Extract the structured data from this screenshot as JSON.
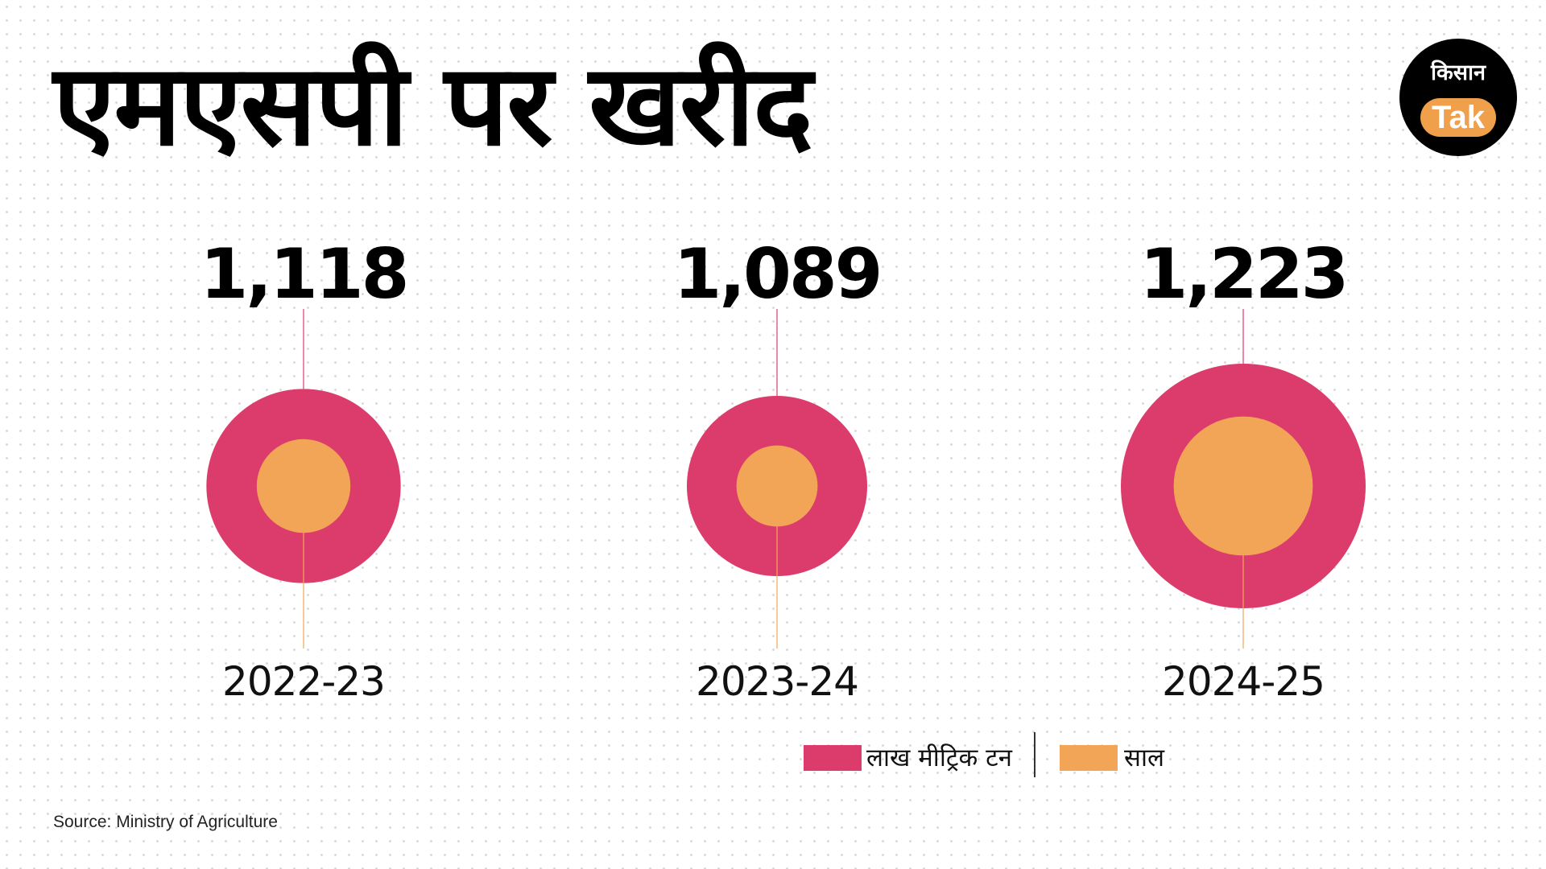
{
  "title": "एमएसपी पर खरीद",
  "logo": {
    "top_text": "किसान",
    "bottom_text": "Tak"
  },
  "colors": {
    "outer": "#dc3c6c",
    "inner": "#f2a556",
    "line_top": "#dc3c6c",
    "line_bottom": "#f2a556",
    "background": "#ffffff"
  },
  "chart_data": {
    "type": "bubble",
    "title": "एमएसपी पर खरीद",
    "unit": "लाख मीट्रिक टन",
    "categories": [
      "2022-23",
      "2023-24",
      "2024-25"
    ],
    "value_labels": [
      "1,118",
      "1,089",
      "1,223"
    ],
    "values": [
      1118,
      1089,
      1223
    ],
    "series": [
      {
        "name": "लाख मीट्रिक टन",
        "values": [
          1118,
          1089,
          1223
        ]
      },
      {
        "name": "साल",
        "values": [
          "2022-23",
          "2023-24",
          "2024-25"
        ]
      }
    ]
  },
  "legend": {
    "items": [
      {
        "label": "लाख मीट्रिक टन"
      },
      {
        "label": "साल"
      }
    ]
  },
  "source": "Source: Ministry of Agriculture"
}
